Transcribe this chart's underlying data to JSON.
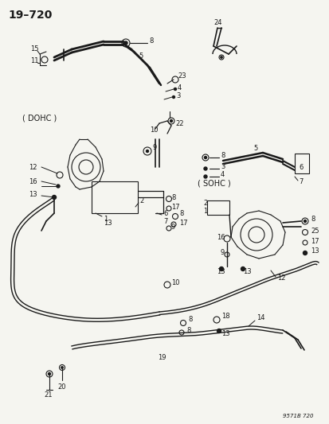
{
  "title": "19–720",
  "watermark": "9571B 720",
  "bg_color": "#f5f5f0",
  "fg_color": "#1a1a1a",
  "fig_width": 4.14,
  "fig_height": 5.33,
  "dpi": 100,
  "dohc_label": "( DOHC )",
  "sohc_label": "( SOHC )"
}
